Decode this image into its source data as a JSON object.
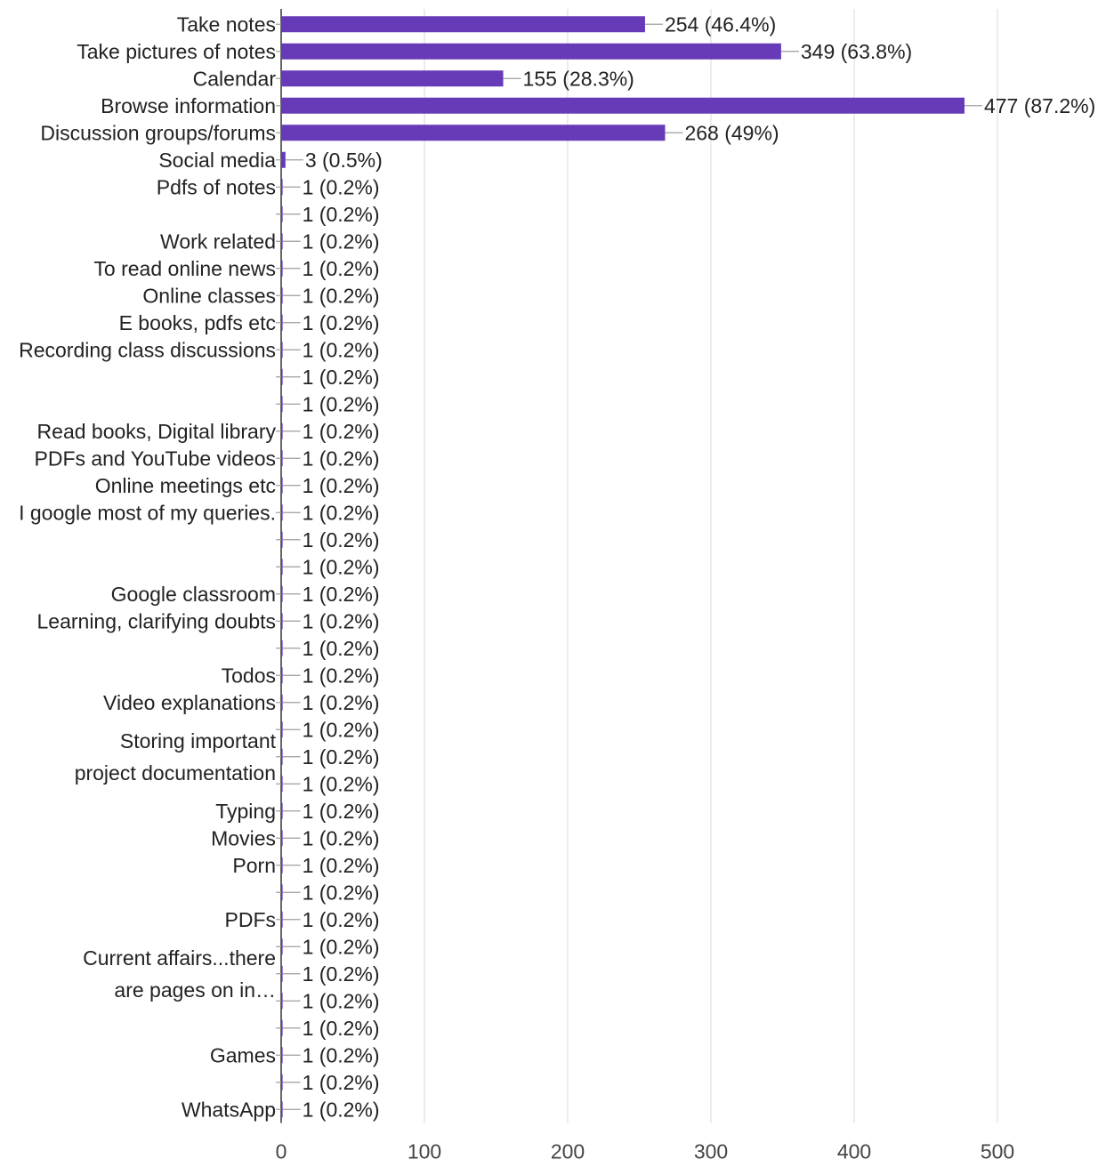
{
  "chart_data": {
    "type": "bar",
    "orientation": "horizontal",
    "categories": [
      "Take notes",
      "Take pictures of notes",
      "Calendar",
      "Browse information",
      "Discussion groups/forums",
      "Social media",
      "Pdfs of notes",
      "",
      "Work related",
      "To read online news",
      "Online classes",
      "E books, pdfs etc",
      "Recording class discussions",
      "",
      "",
      "Read books, Digital library",
      "PDFs and YouTube videos",
      "Online meetings etc",
      "I google most of my queries.",
      "",
      "",
      "Google classroom",
      "Learning, clarifying doubts",
      "",
      "Todos",
      "Video explanations",
      "Storing important project documentation",
      "",
      "",
      "Typing",
      "Movies",
      "Porn",
      "",
      "PDFs",
      "Current affairs...there are pages on in…",
      "",
      "",
      "",
      "Games",
      "",
      "WhatsApp"
    ],
    "values": [
      254,
      349,
      155,
      477,
      268,
      3,
      1,
      1,
      1,
      1,
      1,
      1,
      1,
      1,
      1,
      1,
      1,
      1,
      1,
      1,
      1,
      1,
      1,
      1,
      1,
      1,
      1,
      1,
      1,
      1,
      1,
      1,
      1,
      1,
      1,
      1,
      1,
      1,
      1,
      1,
      1
    ],
    "data_labels": [
      "254 (46.4%)",
      "349 (63.8%)",
      "155 (28.3%)",
      "477 (87.2%)",
      "268 (49%)",
      "3 (0.5%)",
      "1 (0.2%)",
      "1 (0.2%)",
      "1 (0.2%)",
      "1 (0.2%)",
      "1 (0.2%)",
      "1 (0.2%)",
      "1 (0.2%)",
      "1 (0.2%)",
      "1 (0.2%)",
      "1 (0.2%)",
      "1 (0.2%)",
      "1 (0.2%)",
      "1 (0.2%)",
      "1 (0.2%)",
      "1 (0.2%)",
      "1 (0.2%)",
      "1 (0.2%)",
      "1 (0.2%)",
      "1 (0.2%)",
      "1 (0.2%)",
      "1 (0.2%)",
      "1 (0.2%)",
      "1 (0.2%)",
      "1 (0.2%)",
      "1 (0.2%)",
      "1 (0.2%)",
      "1 (0.2%)",
      "1 (0.2%)",
      "1 (0.2%)",
      "1 (0.2%)",
      "1 (0.2%)",
      "1 (0.2%)",
      "1 (0.2%)",
      "1 (0.2%)",
      "1 (0.2%)"
    ],
    "x_ticks": [
      "0",
      "100",
      "200",
      "300",
      "400",
      "500"
    ],
    "xlim": [
      0,
      500
    ],
    "grid": "vertical",
    "bar_color": "#673ab7"
  }
}
